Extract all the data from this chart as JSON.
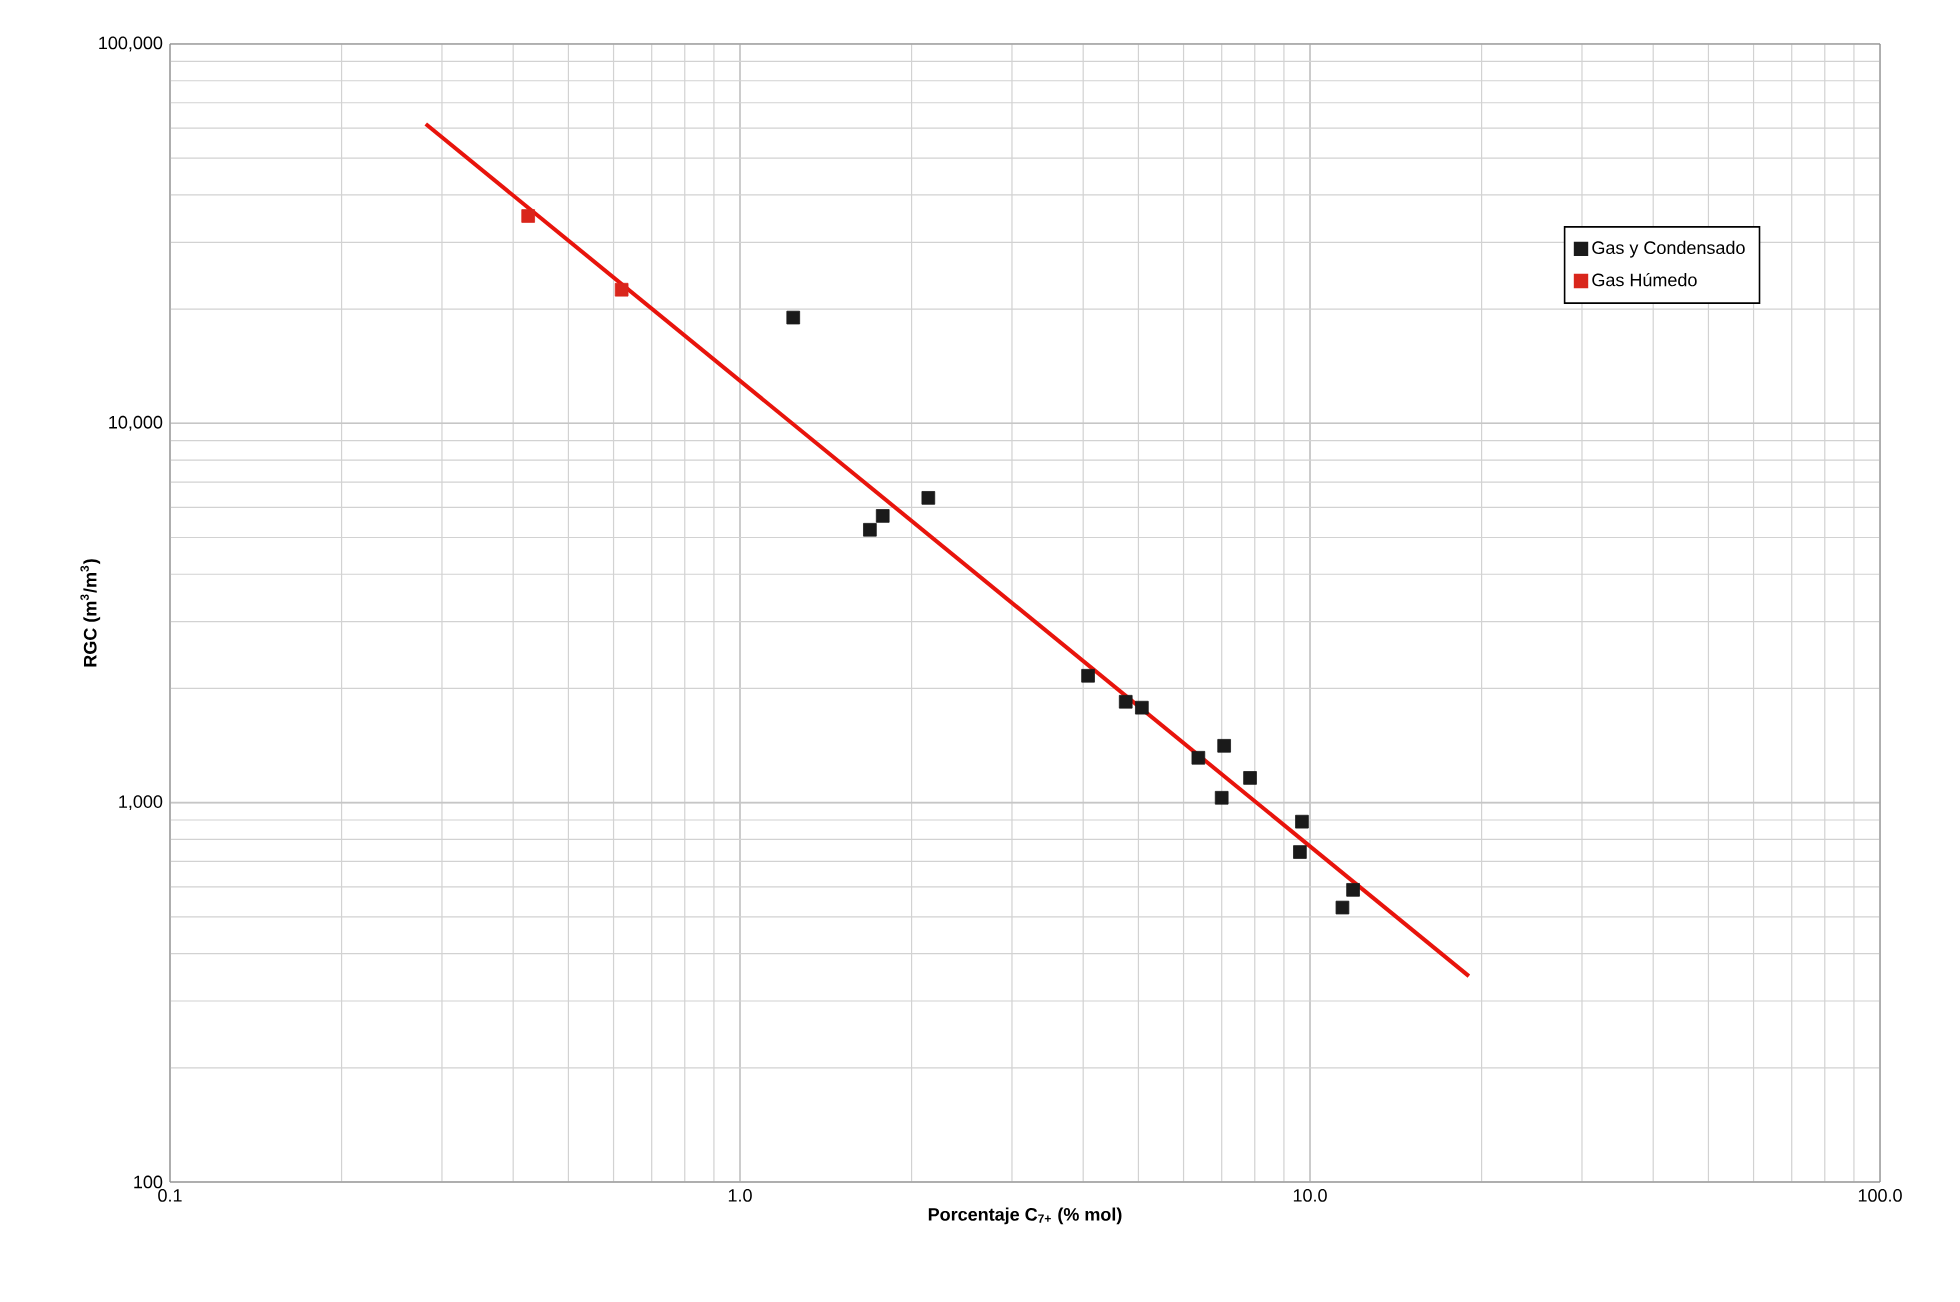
{
  "chart_data": {
    "type": "scatter",
    "xlabel": "Porcentaje C$_{7+}$ (% mol)",
    "ylabel": "RGC (m$^{3}$/m$^{3}$)",
    "log": "xy",
    "grid": true,
    "legend": "top right",
    "marker": "square",
    "xlim": [
      0.1,
      100
    ],
    "ylim": [
      100,
      100000
    ],
    "xticks": [
      {
        "value": 0.1,
        "label": "0.1"
      },
      {
        "value": 1,
        "label": "1.0"
      },
      {
        "value": 10,
        "label": "10.0"
      },
      {
        "value": 100,
        "label": "100.0"
      }
    ],
    "yticks": [
      100,
      {
        "value": 1000,
        "label": "1,000"
      },
      {
        "value": 10000,
        "label": "10,000"
      },
      {
        "value": 100000,
        "label": "100,000"
      }
    ],
    "series": [
      {
        "name": "Gas y Condensado",
        "color": "#1a1a1a",
        "x": [
          1.24,
          1.69,
          1.78,
          2.14,
          4.08,
          4.75,
          5.07,
          6.37,
          7.07,
          7.0,
          7.85,
          9.68,
          9.6,
          11.9,
          11.4
        ],
        "values": [
          19000,
          5240,
          5700,
          6360,
          2160,
          1845,
          1780,
          1313,
          1412,
          1030,
          1162,
          891,
          741,
          589,
          529
        ]
      },
      {
        "name": "Gas Húmedo",
        "color": "#d9261c",
        "x": [
          0.425,
          0.62
        ],
        "values": [
          35200,
          22500
        ]
      },
      {
        "type": "line",
        "color": "#e8140c",
        "marker": "none",
        "x": [
          0.281,
          19
        ],
        "values": [
          61500,
          349
        ]
      }
    ]
  }
}
